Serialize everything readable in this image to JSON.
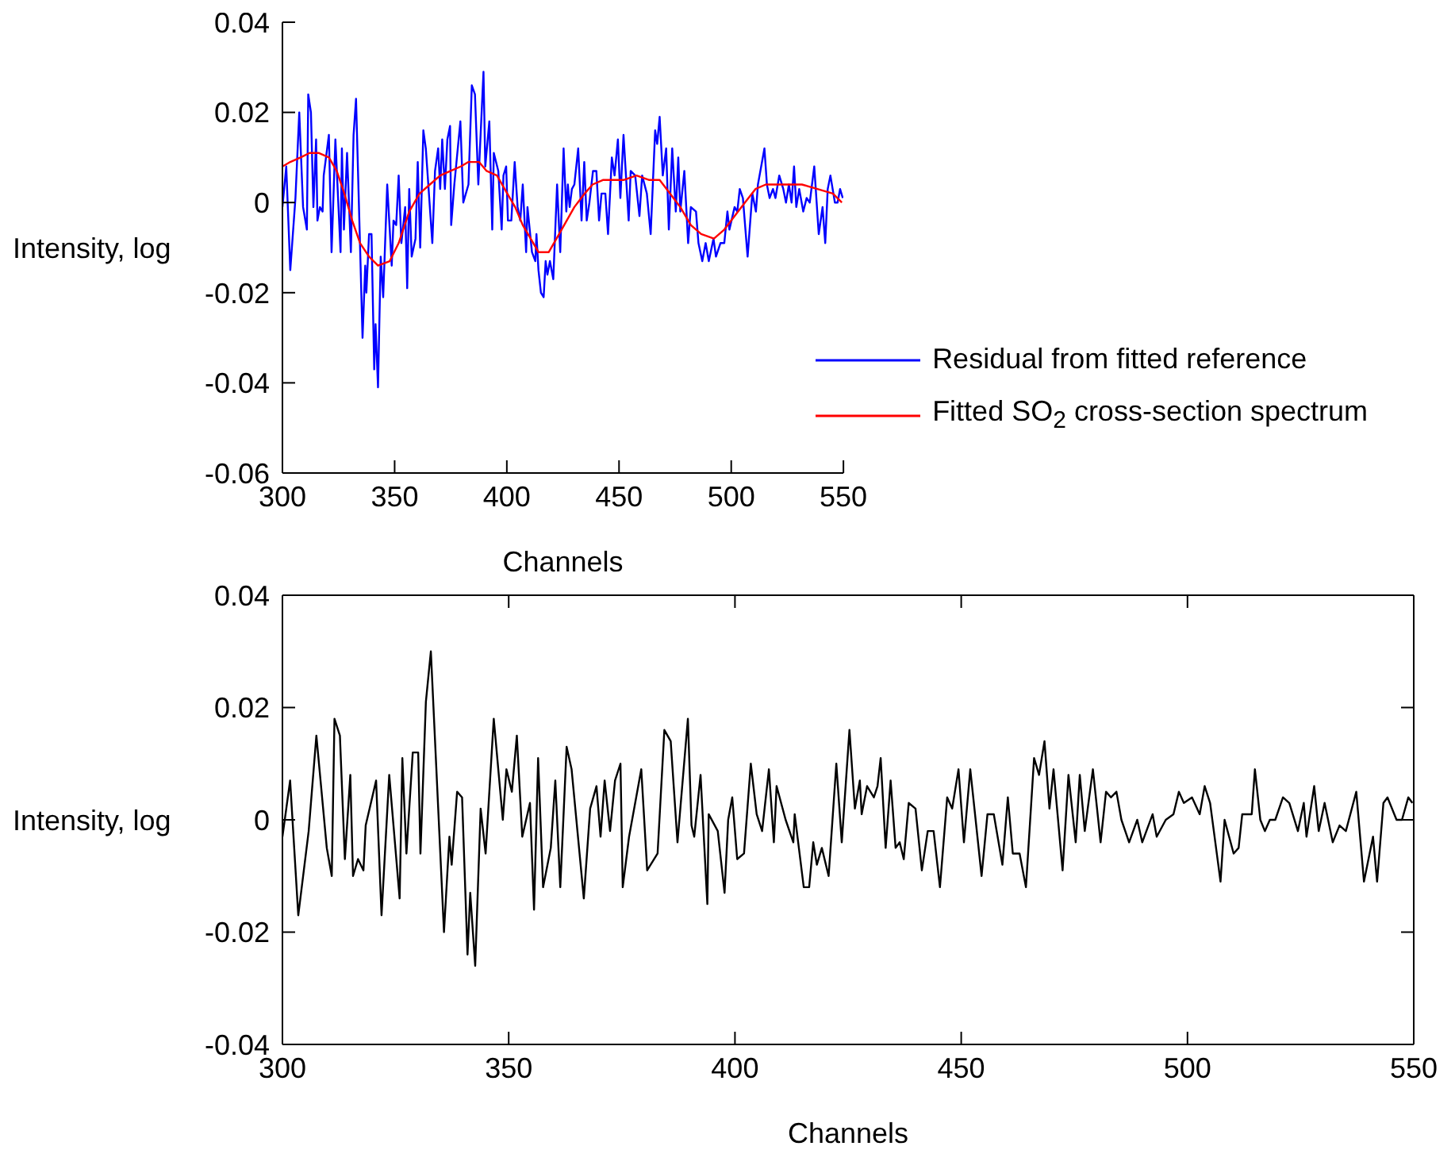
{
  "chart_data": [
    {
      "type": "line",
      "xlabel": "Channels",
      "ylabel": "Intensity, log",
      "xlim": [
        300,
        550
      ],
      "xticks": [
        300,
        350,
        400,
        450,
        500,
        550
      ],
      "ylim": [
        -0.06,
        0.04
      ],
      "yticks": [
        -0.06,
        -0.04,
        -0.02,
        0,
        0.02,
        0.04
      ],
      "legend": "bottom right",
      "series": [
        {
          "name": "Residual from fitted reference",
          "color": "#0000ff",
          "x": [
            300.0,
            301.7,
            303.5,
            305.8,
            307.5,
            309.2,
            310.9,
            311.5,
            312.7,
            313.8,
            315.0,
            315.6,
            316.7,
            317.9,
            318.4,
            320.7,
            321.9,
            323.6,
            325.9,
            326.5,
            327.4,
            328.8,
            330.5,
            331.7,
            332.8,
            335.7,
            336.9,
            337.4,
            338.6,
            339.7,
            340.9,
            341.5,
            342.6,
            343.8,
            344.9,
            346.7,
            348.7,
            349.5,
            350.7,
            351.8,
            353.0,
            354.7,
            355.6,
            356.5,
            357.6,
            359.3,
            360.3,
            361.4,
            362.8,
            363.9,
            366.8,
            368.0,
            369.4,
            370.3,
            371.2,
            372.4,
            373.5,
            374.7,
            375.2,
            376.6,
            379.3,
            380.6,
            382.9,
            384.4,
            385.8,
            387.3,
            389.6,
            390.4,
            392.2,
            393.5,
            394.2,
            396.2,
            397.7,
            398.5,
            399.7,
            400.5,
            402.0,
            403.5,
            404.8,
            406.0,
            407.1,
            408.6,
            409.2,
            411.2,
            412.7,
            413.2,
            414.1,
            415.2,
            416.4,
            417.3,
            418.1,
            419.2,
            420.7,
            422.4,
            423.8,
            425.3,
            426.5,
            427.2,
            428.0,
            429.0,
            430.1,
            431.8,
            433.3,
            434.5,
            435.6,
            436.8,
            438.4,
            439.9,
            441.1,
            442.2,
            443.9,
            445.1,
            446.8,
            448.0,
            449.5,
            450.6,
            452.0,
            454.3,
            455.2,
            457.2,
            459.1,
            460.3,
            462.4,
            464.1,
            466.1,
            467.0,
            468.1,
            469.5,
            471.0,
            472.2,
            473.7,
            475.3,
            476.4,
            477.3,
            479.1,
            480.8,
            482.0,
            484.3,
            485.4,
            487.1,
            488.6,
            490.0,
            492.1,
            493.2,
            495.2,
            496.9,
            498.3,
            499.2,
            501.5,
            502.7,
            503.8,
            505.2,
            507.3,
            509.4,
            511.0,
            511.9,
            514.8,
            515.9,
            517.1,
            518.6,
            519.7,
            521.4,
            523.2,
            524.4,
            525.7,
            526.9,
            528.0,
            529.0,
            530.3,
            532.1,
            533.6,
            535.0,
            537.0,
            539.0,
            540.7,
            541.9,
            543.0,
            544.2,
            546.2,
            547.4,
            548.5,
            549.7
          ],
          "values": [
            -0.001,
            0.008,
            -0.015,
            0.001,
            0.02,
            -0.001,
            -0.006,
            0.024,
            0.02,
            -0.001,
            0.014,
            -0.004,
            -0.001,
            -0.002,
            0.006,
            0.015,
            -0.011,
            0.014,
            -0.011,
            0.012,
            -0.006,
            0.011,
            -0.011,
            0.015,
            0.023,
            -0.03,
            -0.014,
            -0.02,
            -0.007,
            -0.007,
            -0.037,
            -0.027,
            -0.041,
            -0.012,
            -0.021,
            0.004,
            -0.014,
            -0.004,
            -0.005,
            0.006,
            -0.009,
            -0.001,
            -0.019,
            0.003,
            -0.012,
            -0.008,
            0.009,
            -0.01,
            0.016,
            0.012,
            -0.009,
            0.007,
            0.012,
            0.003,
            0.014,
            0.003,
            0.014,
            0.017,
            -0.005,
            0.004,
            0.018,
            0,
            0.004,
            0.026,
            0.024,
            0.004,
            0.029,
            0.008,
            0.018,
            -0.006,
            0.011,
            0.007,
            -0.006,
            0.006,
            0.008,
            -0.004,
            -0.004,
            0.009,
            -0.001,
            -0.004,
            0.004,
            -0.011,
            -0.001,
            -0.011,
            -0.013,
            -0.007,
            -0.015,
            -0.02,
            -0.021,
            -0.013,
            -0.016,
            -0.013,
            -0.017,
            0.004,
            -0.011,
            0.012,
            -0.002,
            0.004,
            -0.001,
            0.003,
            0.004,
            0.012,
            -0.004,
            0.009,
            -0.004,
            0,
            0.007,
            0.007,
            -0.004,
            0.002,
            0.002,
            -0.007,
            0.01,
            0.006,
            0.014,
            0.001,
            0.015,
            -0.004,
            0.007,
            0.006,
            -0.003,
            0.006,
            0.002,
            -0.007,
            0.016,
            0.013,
            0.019,
            0.006,
            0.012,
            -0.006,
            0.012,
            -0.002,
            0.01,
            -0.002,
            0.007,
            -0.009,
            -0.001,
            -0.002,
            -0.009,
            -0.013,
            -0.009,
            -0.013,
            -0.008,
            -0.012,
            -0.009,
            -0.009,
            -0.002,
            -0.006,
            -0.001,
            -0.002,
            0.003,
            0.001,
            -0.012,
            0.002,
            -0.002,
            0.004,
            0.012,
            0.004,
            0.001,
            0.003,
            0.001,
            0.006,
            0.003,
            0,
            0.004,
            0,
            0.008,
            -0.001,
            0.003,
            -0.002,
            0.001,
            0,
            0.008,
            -0.007,
            -0.001,
            -0.009,
            0.003,
            0.006,
            0,
            0,
            0.003,
            0.001
          ]
        },
        {
          "name": "Fitted SO$_{2}$ cross-section spectrum",
          "color": "#ff0000",
          "x": [
            300.0,
            303.5,
            308.1,
            312.1,
            316.1,
            320.7,
            324.2,
            327.6,
            331.1,
            334.6,
            338.6,
            342.6,
            347.8,
            351.8,
            356.5,
            361.1,
            365.7,
            370.3,
            374.9,
            379.5,
            382.9,
            387.6,
            391.0,
            395.6,
            400.2,
            403.7,
            407.1,
            411.8,
            414.1,
            418.7,
            423.3,
            430.1,
            434.7,
            438.2,
            442.8,
            452.0,
            457.8,
            463.5,
            468.1,
            472.7,
            477.3,
            482.0,
            486.6,
            492.3,
            496.9,
            501.5,
            506.1,
            510.8,
            515.4,
            522.3,
            531.5,
            538.4,
            545.3,
            549.3
          ],
          "values": [
            0.008,
            0.009,
            0.01,
            0.011,
            0.011,
            0.01,
            0.007,
            0.002,
            -0.004,
            -0.009,
            -0.012,
            -0.014,
            -0.013,
            -0.009,
            -0.002,
            0.002,
            0.004,
            0.006,
            0.007,
            0.008,
            0.009,
            0.009,
            0.007,
            0.006,
            0.002,
            -0.001,
            -0.005,
            -0.009,
            -0.011,
            -0.011,
            -0.007,
            -0.001,
            0.002,
            0.004,
            0.005,
            0.005,
            0.006,
            0.005,
            0.005,
            0.002,
            -0.001,
            -0.005,
            -0.007,
            -0.008,
            -0.006,
            -0.003,
            0,
            0.003,
            0.004,
            0.004,
            0.004,
            0.003,
            0.002,
            0
          ]
        }
      ]
    },
    {
      "type": "line",
      "xlabel": "Channels",
      "ylabel": "Intensity, log",
      "xlim": [
        300,
        550
      ],
      "xticks": [
        300,
        350,
        400,
        450,
        500,
        550
      ],
      "ylim": [
        -0.04,
        0.04
      ],
      "yticks": [
        -0.04,
        -0.02,
        0,
        0.02,
        0.04
      ],
      "series": [
        {
          "color": "#000000",
          "x": [
            300.0,
            301.7,
            303.5,
            305.8,
            307.5,
            309.8,
            310.9,
            311.5,
            312.7,
            313.8,
            315.0,
            315.6,
            316.7,
            317.9,
            318.4,
            320.7,
            321.9,
            323.6,
            325.9,
            326.5,
            327.4,
            328.8,
            330.0,
            330.5,
            331.7,
            332.8,
            335.7,
            336.9,
            337.4,
            338.6,
            339.7,
            340.9,
            341.5,
            342.6,
            343.8,
            344.9,
            346.7,
            348.7,
            349.5,
            350.7,
            351.8,
            353.0,
            354.7,
            355.6,
            356.5,
            357.6,
            359.3,
            360.3,
            361.4,
            362.8,
            363.9,
            366.6,
            368.0,
            369.4,
            370.3,
            371.2,
            372.4,
            373.5,
            374.7,
            375.2,
            376.6,
            379.3,
            380.6,
            382.9,
            384.4,
            385.8,
            387.3,
            389.6,
            390.4,
            391.0,
            392.4,
            393.9,
            394.2,
            396.2,
            397.7,
            398.5,
            399.4,
            400.5,
            402.0,
            403.5,
            404.8,
            406.0,
            407.5,
            408.6,
            409.2,
            411.2,
            412.9,
            413.2,
            415.2,
            416.4,
            417.3,
            418.1,
            419.2,
            420.7,
            422.4,
            423.6,
            425.3,
            426.5,
            427.6,
            428.0,
            429.2,
            430.7,
            431.5,
            432.2,
            433.3,
            434.4,
            435.5,
            436.4,
            437.3,
            438.4,
            439.9,
            441.3,
            442.6,
            443.9,
            445.3,
            446.9,
            448.0,
            449.4,
            450.6,
            452.0,
            454.5,
            455.8,
            457.2,
            459.1,
            460.3,
            461.4,
            462.9,
            464.3,
            466.1,
            467.2,
            468.4,
            469.5,
            470.4,
            472.4,
            473.7,
            475.3,
            476.2,
            477.3,
            479.1,
            480.8,
            482.0,
            483.1,
            484.3,
            485.4,
            487.1,
            488.9,
            490.0,
            492.3,
            493.2,
            495.2,
            496.9,
            498.1,
            499.2,
            501.0,
            502.7,
            503.8,
            505.0,
            507.3,
            508.2,
            510.2,
            511.3,
            512.1,
            514.2,
            514.9,
            516.1,
            517.1,
            518.2,
            519.4,
            521.1,
            522.5,
            524.4,
            525.7,
            526.3,
            528.0,
            529.0,
            530.3,
            532.1,
            533.6,
            535.0,
            537.3,
            539.0,
            541.0,
            541.9,
            543.3,
            544.2,
            546.2,
            547.4,
            548.8,
            549.7
          ],
          "values": [
            -0.003,
            0.007,
            -0.017,
            -0.002,
            0.015,
            -0.005,
            -0.01,
            0.018,
            0.015,
            -0.007,
            0.008,
            -0.01,
            -0.007,
            -0.009,
            -0.001,
            0.007,
            -0.017,
            0.008,
            -0.014,
            0.011,
            -0.006,
            0.012,
            0.012,
            -0.006,
            0.021,
            0.03,
            -0.02,
            -0.003,
            -0.008,
            0.005,
            0.004,
            -0.024,
            -0.013,
            -0.026,
            0.002,
            -0.006,
            0.018,
            0,
            0.009,
            0.005,
            0.015,
            -0.003,
            0.003,
            -0.016,
            0.011,
            -0.012,
            -0.005,
            0.007,
            -0.012,
            0.013,
            0.009,
            -0.014,
            0.002,
            0.006,
            -0.003,
            0.007,
            -0.002,
            0.007,
            0.01,
            -0.012,
            -0.003,
            0.009,
            -0.009,
            -0.006,
            0.016,
            0.014,
            -0.004,
            0.018,
            -0.001,
            -0.003,
            0.008,
            -0.015,
            0.001,
            -0.002,
            -0.013,
            0,
            0.004,
            -0.007,
            -0.006,
            0.01,
            0.001,
            -0.002,
            0.009,
            -0.004,
            0.006,
            0,
            -0.004,
            0.001,
            -0.012,
            -0.012,
            -0.004,
            -0.008,
            -0.005,
            -0.01,
            0.01,
            -0.004,
            0.016,
            0.002,
            0.007,
            0.001,
            0.006,
            0.004,
            0.006,
            0.011,
            -0.005,
            0.007,
            -0.005,
            -0.004,
            -0.007,
            0.003,
            0.002,
            -0.009,
            -0.002,
            -0.002,
            -0.012,
            0.004,
            0.002,
            0.009,
            -0.004,
            0.009,
            -0.01,
            0.001,
            0.001,
            -0.008,
            0.004,
            -0.006,
            -0.006,
            -0.012,
            0.011,
            0.008,
            0.014,
            0.002,
            0.009,
            -0.009,
            0.008,
            -0.004,
            0.008,
            -0.002,
            0.009,
            -0.004,
            0.005,
            0.004,
            0.005,
            0,
            -0.004,
            0,
            -0.004,
            0.001,
            -0.003,
            0,
            0.001,
            0.005,
            0.003,
            0.004,
            0.001,
            0.006,
            0.003,
            -0.011,
            0,
            -0.006,
            -0.005,
            0.001,
            0.001,
            0.009,
            0,
            -0.002,
            0,
            0,
            0.004,
            0.003,
            -0.002,
            0.003,
            -0.003,
            0.006,
            -0.002,
            0.003,
            -0.004,
            -0.001,
            -0.002,
            0.005,
            -0.011,
            -0.003,
            -0.011,
            0.003,
            0.004,
            0,
            0,
            0.004,
            0.003
          ]
        }
      ]
    }
  ]
}
